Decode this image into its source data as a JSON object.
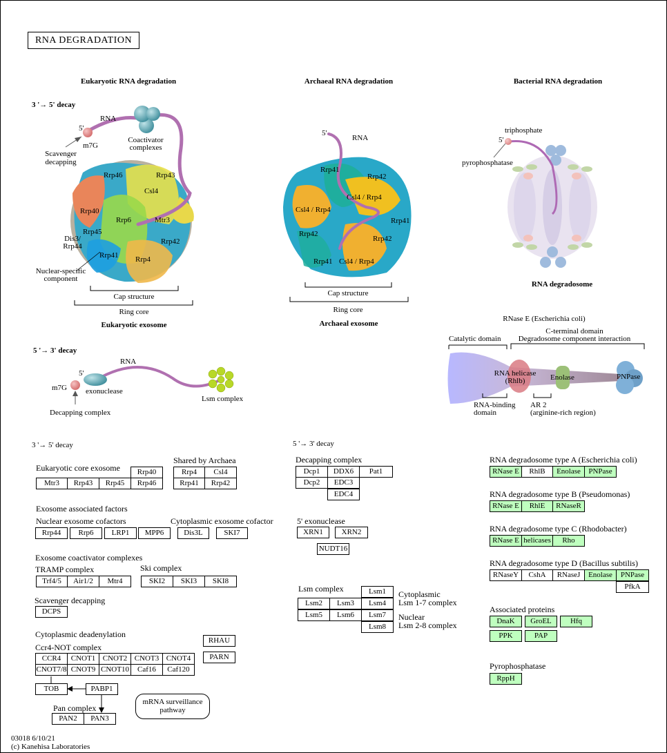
{
  "title": "RNA DEGRADATION",
  "colors": {
    "gene_found": "#bfffbf",
    "rna": "#b070b0"
  },
  "headers": {
    "eukaryotic": "Eukaryotic RNA degradation",
    "archaeal": "Archaeal RNA degradation",
    "bacterial": "Bacterial RNA degradation",
    "decay35_bold": "3 '→  5' decay",
    "decay53_bold": "5 '→  3' decay"
  },
  "euk_illus": {
    "rna": "RNA",
    "five": "5'",
    "m7g": "m7G",
    "scavenger": "Scavenger\ndecapping",
    "coactivator": "Coactivator\ncomplexes",
    "subunits": [
      "Rrp46",
      "Rrp43",
      "Csl4",
      "Rrp40",
      "Rrp6",
      "Mtr3",
      "Rrp45",
      "Rrp42",
      "Rrp41",
      "Rrp4"
    ],
    "dis3": "Dis3/\nRrp44",
    "nuclear": "Nuclear-specific\ncomponent",
    "cap": "Cap structure",
    "ring": "Ring core",
    "caption": "Eukaryotic exosome"
  },
  "arch_illus": {
    "five": "5'",
    "rna": "RNA",
    "subunits": [
      "Rrp41",
      "Rrp42",
      "Csl4 / Rrp4",
      "Csl4 / Rrp4",
      "Rrp41",
      "Rrp42",
      "Rrp42",
      "Rrp41",
      "Csl4 / Rrp4"
    ],
    "cap": "Cap structure",
    "ring": "Ring core",
    "caption": "Archaeal exosome"
  },
  "bact_illus": {
    "triphosphate": "triphosphate",
    "five": "5'",
    "pyrophosphatase": "pyrophosphatase",
    "caption": "RNA degradosome"
  },
  "rnase_e": {
    "title": "RNase E (Escherichia coli)",
    "catalytic": "Catalytic domain",
    "cterm": "C-terminal domain",
    "degradosome": "Degradosome component interaction",
    "helicase": "RNA helicase\n(Rhlb)",
    "enolase": "Enolase",
    "pnpase": "PNPase",
    "rnabinding": "RNA-binding\ndomain",
    "ar2": "AR 2\n(arginine-rich region)"
  },
  "decay53_illus": {
    "five": "5'",
    "rna": "RNA",
    "m7g": "m7G",
    "exonuclease": "exonuclease",
    "lsm": "Lsm complex",
    "decapping": "Decapping complex"
  },
  "left": {
    "heading": "3 '→ 5' decay",
    "core_label": "Eukaryotic core exosome",
    "core": [
      "Rrp40",
      "Mtr3",
      "Rrp43",
      "Rrp45",
      "Rrp46"
    ],
    "shared_label": "Shared by Archaea",
    "shared": [
      "Rrp4",
      "Csl4",
      "Rrp41",
      "Rrp42"
    ],
    "assoc_label": "Exosome associated factors",
    "nuclear_label": "Nuclear exosome cofactors",
    "nuclear": [
      "Rrp44",
      "Rrp6",
      "LRP1",
      "MPP6"
    ],
    "cyto_label": "Cytoplasmic exosome cofactor",
    "cyto": [
      "Dis3L",
      "SKI7"
    ],
    "coact_label": "Exosome coactivator complexes",
    "tramp_label": "TRAMP complex",
    "tramp": [
      "Trf4/5",
      "Air1/2",
      "Mtr4"
    ],
    "ski_label": "Ski complex",
    "ski": [
      "SKI2",
      "SKI3",
      "SKI8"
    ],
    "scav_label": "Scavenger decapping",
    "dcps": "DCPS",
    "deadenyl_label": "Cytoplasmic deadenylation",
    "ccr4_label": "Ccr4-NOT complex",
    "ccr4": [
      "CCR4",
      "CNOT1",
      "CNOT2",
      "CNOT3",
      "CNOT4",
      "CNOT7/8",
      "CNOT9",
      "CNOT10",
      "Caf16",
      "Caf120"
    ],
    "rhau": "RHAU",
    "parn": "PARN",
    "tob": "TOB",
    "pabp1": "PABP1",
    "pan_label": "Pan complex",
    "pan": [
      "PAN2",
      "PAN3"
    ],
    "surveillance": "mRNA surveillance\npathway"
  },
  "middle": {
    "heading": "5 '→ 3' decay",
    "decap_label": "Decapping complex",
    "decap": [
      "Dcp1",
      "DDX6",
      "Pat1",
      "Dcp2",
      "EDC3",
      "EDC4"
    ],
    "exo_label": "5' exonuclease",
    "exo": [
      "XRN1",
      "XRN2",
      "NUDT16"
    ],
    "lsm_label": "Lsm complex",
    "lsm": [
      "Lsm1",
      "Lsm2",
      "Lsm3",
      "Lsm4",
      "Lsm5",
      "Lsm6",
      "Lsm7",
      "Lsm8"
    ],
    "cyto_lsm": "Cytoplasmic\nLsm 1-7 complex",
    "nuc_lsm": "Nuclear\nLsm 2-8 complex"
  },
  "right": {
    "typeA_label": "RNA degradosome type A (Escherichia coli)",
    "typeA": [
      "RNase E",
      "RhlB",
      "Enolase",
      "PNPase"
    ],
    "typeB_label": "RNA degradosome type B (Pseudomonas)",
    "typeB": [
      "RNase E",
      "RhlE",
      "RNaseR"
    ],
    "typeC_label": "RNA degradosome type C (Rhodobacter)",
    "typeC": [
      "RNase E",
      "helicases",
      "Rho"
    ],
    "typeD_label": "RNA degradosome type D (Bacillus subtilis)",
    "typeD": [
      "RNaseY",
      "CshA",
      "RNaseJ",
      "Enolase",
      "PNPase",
      "PfkA"
    ],
    "assoc_label": "Associated proteins",
    "assoc": [
      "DnaK",
      "GroEL",
      "Hfq",
      "PPK",
      "PAP"
    ],
    "pyro_label": "Pyrophosphatase",
    "rpph": "RppH"
  },
  "footer": {
    "id": "03018 6/10/21",
    "copyright": "(c) Kanehisa Laboratories"
  }
}
